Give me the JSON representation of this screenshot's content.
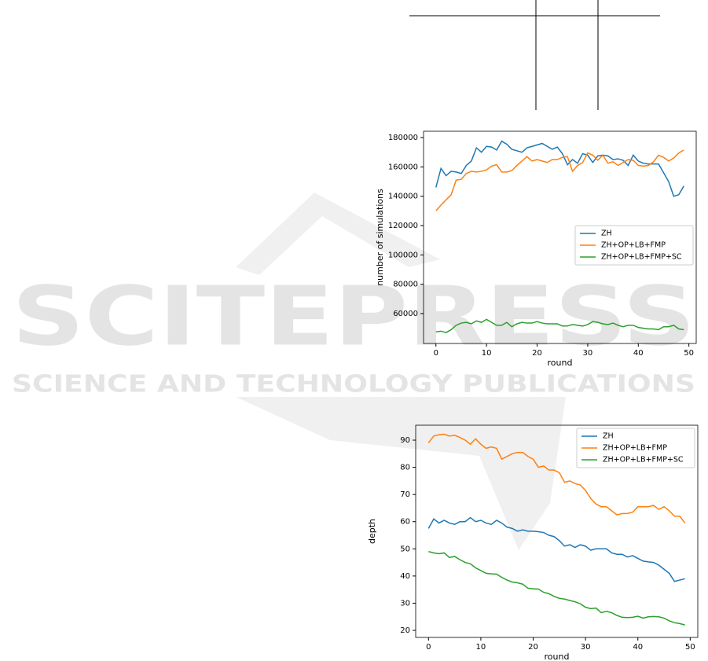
{
  "watermark": {
    "title": "SCITEPRESS",
    "subtitle": "SCIENCE AND TECHNOLOGY PUBLICATIONS"
  },
  "chart_data": [
    {
      "type": "line",
      "xlabel": "round",
      "ylabel": "number of simulations",
      "x": [
        0,
        1,
        2,
        3,
        4,
        5,
        6,
        7,
        8,
        9,
        10,
        11,
        12,
        13,
        14,
        15,
        16,
        17,
        18,
        19,
        20,
        21,
        22,
        23,
        24,
        25,
        26,
        27,
        28,
        29,
        30,
        31,
        32,
        33,
        34,
        35,
        36,
        37,
        38,
        39,
        40,
        41,
        42,
        43,
        44,
        45,
        46,
        47,
        48,
        49
      ],
      "xlim": [
        -2.45,
        51.45
      ],
      "xticks": [
        0,
        10,
        20,
        30,
        40,
        50
      ],
      "ylim": [
        39600,
        184300
      ],
      "yticks": [
        60000,
        80000,
        100000,
        120000,
        140000,
        160000,
        180000
      ],
      "legend": "center right",
      "series": [
        {
          "name": "ZH",
          "color": "#1f77b4",
          "values": [
            146000,
            159000,
            154000,
            157000,
            156500,
            155500,
            161000,
            164000,
            173000,
            170000,
            174000,
            173500,
            171500,
            177500,
            175500,
            172000,
            171000,
            170000,
            173000,
            174000,
            175000,
            176000,
            174000,
            172000,
            173500,
            169000,
            161500,
            165000,
            162500,
            169000,
            168000,
            163000,
            167500,
            168000,
            167500,
            165000,
            165500,
            164500,
            161000,
            168000,
            164000,
            162500,
            162000,
            162000,
            162000,
            156000,
            150000,
            140000,
            141000,
            147000
          ]
        },
        {
          "name": "ZH+OP+LB+FMP",
          "color": "#ff7f0e",
          "values": [
            130000,
            134000,
            137500,
            141000,
            151000,
            151500,
            155500,
            157000,
            156500,
            157000,
            158000,
            160500,
            161500,
            156500,
            156500,
            157500,
            161000,
            164000,
            167000,
            164000,
            165000,
            164000,
            163000,
            165000,
            165000,
            166500,
            167000,
            157000,
            161000,
            163000,
            169500,
            168000,
            164500,
            168000,
            162500,
            163500,
            161000,
            163000,
            165000,
            164500,
            161000,
            160500,
            161000,
            163500,
            168000,
            166500,
            164000,
            166000,
            169500,
            171500
          ]
        },
        {
          "name": "ZH+OP+LB+FMP+SC",
          "color": "#2ca02c",
          "values": [
            47500,
            48000,
            47000,
            49000,
            52000,
            53500,
            54000,
            53000,
            55000,
            54000,
            56000,
            54000,
            52000,
            52000,
            54000,
            51000,
            53000,
            54000,
            53500,
            53500,
            54500,
            53500,
            53000,
            53000,
            53000,
            51500,
            51500,
            52500,
            52000,
            51500,
            52500,
            54500,
            54000,
            53000,
            52500,
            53500,
            52000,
            51000,
            52000,
            52000,
            50500,
            50000,
            49500,
            49500,
            49000,
            51000,
            51000,
            52000,
            49500,
            49000
          ]
        }
      ]
    },
    {
      "type": "line",
      "xlabel": "round",
      "ylabel": "depth",
      "x": [
        0,
        1,
        2,
        3,
        4,
        5,
        6,
        7,
        8,
        9,
        10,
        11,
        12,
        13,
        14,
        15,
        16,
        17,
        18,
        19,
        20,
        21,
        22,
        23,
        24,
        25,
        26,
        27,
        28,
        29,
        30,
        31,
        32,
        33,
        34,
        35,
        36,
        37,
        38,
        39,
        40,
        41,
        42,
        43,
        44,
        45,
        46,
        47,
        48,
        49
      ],
      "xlim": [
        -2.45,
        51.45
      ],
      "xticks": [
        0,
        10,
        20,
        30,
        40,
        50
      ],
      "ylim": [
        17.4,
        95.5
      ],
      "yticks": [
        20,
        30,
        40,
        50,
        60,
        70,
        80,
        90
      ],
      "legend": "upper right",
      "series": [
        {
          "name": "ZH",
          "color": "#1f77b4",
          "values": [
            57.5,
            61,
            59.5,
            60.5,
            59.5,
            59,
            60,
            60,
            61.5,
            60,
            60.5,
            59.5,
            59,
            60.5,
            59.5,
            58,
            57.5,
            56.5,
            57,
            56.5,
            56.5,
            56.3,
            56,
            55,
            54.5,
            53,
            51,
            51.5,
            50.5,
            51.5,
            51,
            49.5,
            50,
            50,
            50,
            48.5,
            48,
            48,
            47,
            47.5,
            46.5,
            45.5,
            45.2,
            45,
            44,
            42.5,
            41,
            38,
            38.5,
            39
          ]
        },
        {
          "name": "ZH+OP+LB+FMP",
          "color": "#ff7f0e",
          "values": [
            89,
            91.5,
            92,
            92.2,
            91.5,
            91.8,
            91,
            90,
            88.5,
            90.5,
            88.5,
            87,
            87.5,
            87,
            83,
            84,
            85,
            85.5,
            85.5,
            84,
            83,
            80,
            80.5,
            79,
            79,
            78,
            74.5,
            75,
            74,
            73.5,
            71.5,
            68.5,
            66.5,
            65.5,
            65.5,
            64,
            62.5,
            63,
            63,
            63.5,
            65.5,
            65.5,
            65.5,
            66,
            64.5,
            65.5,
            64,
            62,
            62,
            59.5
          ]
        },
        {
          "name": "ZH+OP+LB+FMP+SC",
          "color": "#2ca02c",
          "values": [
            49,
            48.5,
            48.2,
            48.5,
            46.8,
            47.2,
            46,
            45,
            44.5,
            43,
            42,
            41,
            40.8,
            40.7,
            39.5,
            38.5,
            37.8,
            37.5,
            37,
            35.5,
            35.3,
            35.2,
            34,
            33.5,
            32.5,
            31.8,
            31.5,
            31,
            30.5,
            29.8,
            28.5,
            28,
            28.2,
            26.5,
            27,
            26.5,
            25.5,
            24.8,
            24.7,
            24.8,
            25.2,
            24.5,
            25,
            25.1,
            25,
            24.5,
            23.5,
            22.8,
            22.5,
            22
          ]
        }
      ]
    }
  ]
}
